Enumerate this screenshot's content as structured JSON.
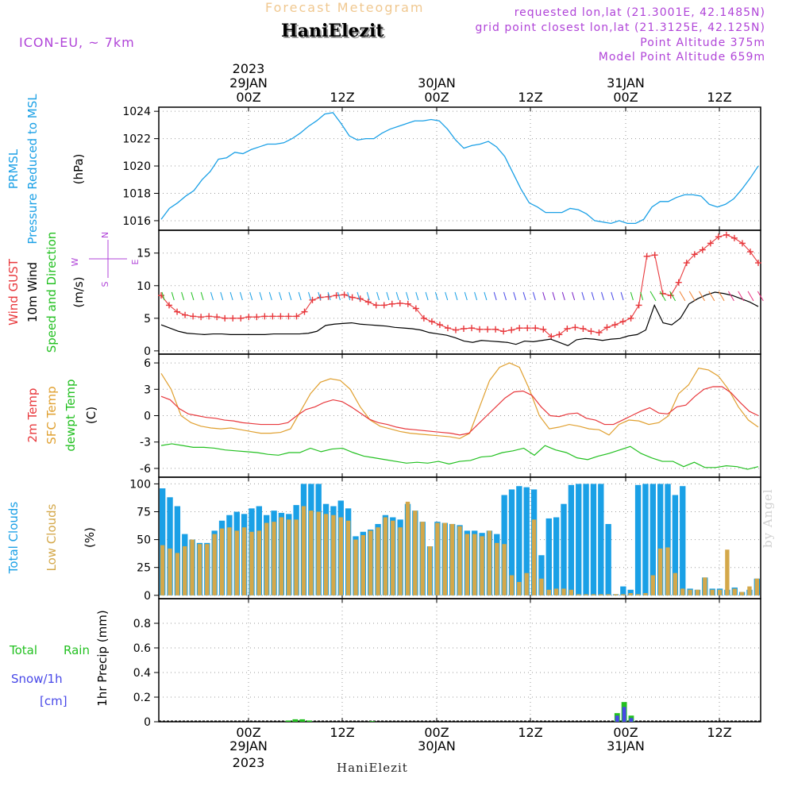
{
  "header": {
    "model": "ICON-EU, ~ 7km",
    "subtitle": "Forecast Meteogram",
    "location": "HaniElezit",
    "requested": "requested lon,lat (21.3001E, 42.1485N)",
    "gridpoint": "grid point closest lon,lat (21.3125E, 42.125N)",
    "point_alt": "Point Altitude 375m",
    "model_alt": "Model Point Altitude 659m"
  },
  "footer": {
    "name": "HaniElezit",
    "byline": "by Angel"
  },
  "time_axis": {
    "top_year": "2023",
    "ticks": [
      "00Z",
      "12Z",
      "00Z",
      "12Z",
      "00Z",
      "12Z"
    ],
    "dates": [
      "29JAN",
      "30JAN",
      "31JAN"
    ],
    "bottom_year": "2023"
  },
  "panel_labels": {
    "pressure": [
      "PRMSL",
      "Pressure Reduced to MSL",
      "(hPa)"
    ],
    "wind": [
      "Wind GUST",
      "10m Wind",
      "Speed and Direction",
      "(m/s)"
    ],
    "wind_compass": [
      "N",
      "S",
      "W",
      "E"
    ],
    "temp": [
      "2m Temp",
      "SFC Temp",
      "dewpt Temp",
      "(C)"
    ],
    "clouds": [
      "Total Clouds",
      "Low Clouds",
      "(%)"
    ],
    "precip": [
      "Total",
      "Rain",
      "Snow/1h",
      "[cm]",
      "1hr Precip (mm)"
    ]
  },
  "colors": {
    "pressure": "#1aa0e6",
    "gust": "#e8383c",
    "wind": "#000000",
    "temp2m": "#e8383c",
    "sfc": "#e0a030",
    "dewpt": "#22c020",
    "total_clouds": "#1aa0e6",
    "low_clouds": "#d4a84a",
    "rain": "#22c020",
    "snow": "#4848e8",
    "model": "#b044d8"
  },
  "chart_data": [
    {
      "type": "line",
      "title": "PRMSL",
      "ylabel": "(hPa)",
      "ylim": [
        1015.3,
        1024.3
      ],
      "yticks": [
        "1016",
        "1018",
        "1020",
        "1022",
        "1024"
      ],
      "yvals": [
        1016,
        1018,
        1020,
        1022,
        1024
      ],
      "series": [
        {
          "name": "PRMSL",
          "values": [
            1016.1,
            1016.9,
            1017.3,
            1017.8,
            1018.2,
            1019.0,
            1019.6,
            1020.5,
            1020.6,
            1021.0,
            1020.9,
            1021.2,
            1021.4,
            1021.6,
            1021.6,
            1021.7,
            1022.0,
            1022.4,
            1022.9,
            1023.3,
            1023.8,
            1023.9,
            1023.1,
            1022.2,
            1021.9,
            1022.0,
            1022.0,
            1022.4,
            1022.7,
            1022.9,
            1023.1,
            1023.3,
            1023.3,
            1023.4,
            1023.3,
            1022.7,
            1021.9,
            1021.3,
            1021.5,
            1021.6,
            1021.8,
            1021.4,
            1020.7,
            1019.5,
            1018.3,
            1017.3,
            1017.0,
            1016.6,
            1016.6,
            1016.6,
            1016.9,
            1016.8,
            1016.5,
            1016.0,
            1015.9,
            1015.8,
            1016.0,
            1015.8,
            1015.8,
            1016.1,
            1017.0,
            1017.4,
            1017.4,
            1017.7,
            1017.9,
            1017.9,
            1017.8,
            1017.2,
            1017.0,
            1017.2,
            1017.6,
            1018.3,
            1019.1,
            1020.0
          ]
        }
      ]
    },
    {
      "type": "line",
      "title": "Wind",
      "ylabel": "(m/s)",
      "ylim": [
        -0.5,
        18.5
      ],
      "yticks": [
        "0",
        "5",
        "10",
        "15"
      ],
      "yvals": [
        0,
        5,
        10,
        15
      ],
      "series": [
        {
          "name": "Wind GUST",
          "values": [
            8.5,
            7.0,
            6.0,
            5.5,
            5.3,
            5.2,
            5.3,
            5.2,
            5.0,
            5.0,
            5.0,
            5.2,
            5.2,
            5.3,
            5.3,
            5.3,
            5.3,
            5.3,
            6.0,
            7.8,
            8.2,
            8.3,
            8.5,
            8.6,
            8.2,
            8.0,
            7.5,
            7.0,
            7.0,
            7.2,
            7.3,
            7.2,
            6.5,
            5.0,
            4.5,
            4.0,
            3.5,
            3.2,
            3.4,
            3.5,
            3.3,
            3.3,
            3.3,
            3.0,
            3.2,
            3.5,
            3.5,
            3.5,
            3.3,
            2.2,
            2.5,
            3.4,
            3.6,
            3.4,
            3.0,
            2.8,
            3.6,
            4.0,
            4.5,
            5.0,
            7.0,
            14.5,
            14.7,
            8.8,
            8.5,
            10.5,
            13.5,
            14.8,
            15.5,
            16.5,
            17.5,
            17.8,
            17.3,
            16.5,
            15.2,
            13.5
          ]
        },
        {
          "name": "10m Wind",
          "values": [
            4.0,
            3.5,
            3.0,
            2.7,
            2.6,
            2.5,
            2.6,
            2.6,
            2.5,
            2.5,
            2.5,
            2.5,
            2.5,
            2.6,
            2.6,
            2.6,
            2.6,
            2.7,
            3.0,
            3.9,
            4.1,
            4.2,
            4.3,
            4.1,
            4.0,
            3.9,
            3.8,
            3.6,
            3.5,
            3.4,
            3.2,
            2.8,
            2.6,
            2.4,
            2.0,
            1.5,
            1.3,
            1.6,
            1.5,
            1.4,
            1.3,
            1.0,
            1.5,
            1.4,
            1.6,
            1.8,
            1.3,
            0.8,
            1.7,
            1.9,
            1.8,
            1.6,
            1.8,
            1.9,
            2.3,
            2.5,
            3.2,
            7.0,
            4.3,
            4.0,
            5.0,
            7.2,
            8.0,
            8.6,
            9.0,
            8.8,
            8.5,
            8.0,
            7.5,
            6.8
          ]
        }
      ]
    },
    {
      "type": "line",
      "title": "Temperature",
      "ylabel": "(C)",
      "ylim": [
        -7,
        7
      ],
      "yticks": [
        "-6",
        "-3",
        "0",
        "3",
        "6"
      ],
      "yvals": [
        -6,
        -3,
        0,
        3,
        6
      ],
      "series": [
        {
          "name": "2m Temp",
          "values": [
            2.2,
            1.8,
            0.8,
            0.2,
            0.0,
            -0.2,
            -0.3,
            -0.5,
            -0.6,
            -0.8,
            -0.9,
            -1.0,
            -1.0,
            -1.0,
            -0.8,
            0.0,
            0.7,
            1.0,
            1.5,
            1.8,
            1.6,
            1.0,
            0.3,
            -0.4,
            -0.8,
            -1.0,
            -1.3,
            -1.5,
            -1.6,
            -1.7,
            -1.8,
            -1.9,
            -2.0,
            -2.2,
            -2.0,
            -1.0,
            0.0,
            1.0,
            2.0,
            2.7,
            2.8,
            2.3,
            1.0,
            0.0,
            -0.1,
            0.2,
            0.3,
            -0.3,
            -0.5,
            -1.0,
            -1.0,
            -0.5,
            0.0,
            0.5,
            0.9,
            0.3,
            0.2,
            1.0,
            1.2,
            2.2,
            3.0,
            3.3,
            3.3,
            2.6,
            1.5,
            0.5,
            0.0
          ]
        },
        {
          "name": "SFC Temp",
          "values": [
            4.8,
            3.0,
            0.0,
            -0.8,
            -1.2,
            -1.4,
            -1.5,
            -1.4,
            -1.6,
            -1.8,
            -2.0,
            -2.0,
            -1.9,
            -1.5,
            0.5,
            2.5,
            3.8,
            4.2,
            4.0,
            3.0,
            1.0,
            -0.5,
            -1.2,
            -1.5,
            -1.8,
            -2.0,
            -2.1,
            -2.2,
            -2.3,
            -2.4,
            -2.6,
            -2.0,
            1.0,
            4.0,
            5.5,
            6.0,
            5.5,
            3.0,
            0.0,
            -1.5,
            -1.3,
            -1.0,
            -1.2,
            -1.5,
            -1.6,
            -2.2,
            -1.0,
            -0.5,
            -0.6,
            -1.0,
            -0.8,
            0.0,
            2.5,
            3.5,
            5.4,
            5.2,
            4.5,
            3.0,
            1.0,
            -0.5,
            -1.3
          ]
        },
        {
          "name": "dewpt Temp",
          "values": [
            -3.4,
            -3.2,
            -3.4,
            -3.6,
            -3.6,
            -3.7,
            -3.9,
            -4.0,
            -4.1,
            -4.2,
            -4.4,
            -4.5,
            -4.2,
            -4.2,
            -3.7,
            -4.1,
            -3.8,
            -3.7,
            -4.2,
            -4.6,
            -4.8,
            -5.0,
            -5.2,
            -5.4,
            -5.3,
            -5.4,
            -5.2,
            -5.5,
            -5.2,
            -5.1,
            -4.7,
            -4.6,
            -4.2,
            -4.0,
            -3.7,
            -4.5,
            -3.4,
            -3.9,
            -4.2,
            -4.8,
            -5.0,
            -4.6,
            -4.3,
            -3.9,
            -3.5,
            -4.3,
            -4.8,
            -5.2,
            -5.2,
            -5.8,
            -5.3,
            -5.9,
            -5.9,
            -5.7,
            -5.8,
            -6.1,
            -5.8
          ]
        }
      ]
    },
    {
      "type": "bar",
      "title": "Clouds",
      "ylabel": "(%)",
      "ylim": [
        -3,
        106
      ],
      "yticks": [
        "0",
        "25",
        "50",
        "75",
        "100"
      ],
      "yvals": [
        0,
        25,
        50,
        75,
        100
      ],
      "series": [
        {
          "name": "Total Clouds",
          "values": [
            96,
            88,
            80,
            55,
            50,
            47,
            47,
            58,
            67,
            72,
            75,
            73,
            78,
            80,
            72,
            76,
            74,
            73,
            81,
            100,
            100,
            100,
            82,
            80,
            85,
            78,
            53,
            57,
            59,
            64,
            72,
            70,
            68,
            82,
            76,
            66,
            44,
            66,
            65,
            64,
            63,
            58,
            58,
            56,
            58,
            55,
            90,
            95,
            98,
            97,
            95,
            36,
            69,
            70,
            82,
            99,
            100,
            100,
            100,
            100,
            64,
            1,
            8,
            5,
            99,
            100,
            100,
            100,
            100,
            90,
            98,
            6,
            5,
            16,
            6,
            6,
            5,
            7,
            3,
            5,
            15
          ]
        },
        {
          "name": "Low Clouds",
          "values": [
            45,
            42,
            38,
            44,
            50,
            46,
            46,
            55,
            60,
            61,
            58,
            61,
            57,
            58,
            65,
            66,
            70,
            68,
            68,
            80,
            76,
            75,
            73,
            72,
            70,
            67,
            50,
            54,
            58,
            61,
            70,
            67,
            61,
            84,
            76,
            66,
            44,
            65,
            65,
            64,
            62,
            55,
            55,
            53,
            58,
            47,
            46,
            18,
            12,
            20,
            68,
            15,
            5,
            6,
            6,
            5,
            1,
            1,
            1,
            1,
            1,
            1,
            1,
            2,
            1,
            2,
            18,
            42,
            43,
            20,
            6,
            5,
            5,
            16,
            5,
            5,
            41,
            6,
            3,
            8,
            15
          ]
        }
      ]
    },
    {
      "type": "bar",
      "title": "Precipitation",
      "ylabel": "1hr Precip (mm)",
      "ylim": [
        0,
        1.0
      ],
      "yticks": [
        "0",
        "0.2",
        "0.4",
        "0.6",
        "0.8"
      ],
      "yvals": [
        0,
        0.2,
        0.4,
        0.6,
        0.8
      ],
      "series": [
        {
          "name": "Total Rain",
          "values": [
            0,
            0,
            0,
            0,
            0,
            0,
            0,
            0,
            0,
            0,
            0,
            0,
            0,
            0,
            0,
            0,
            0,
            0,
            0.01,
            0.02,
            0.02,
            0.01,
            0,
            0,
            0,
            0,
            0,
            0,
            0,
            0,
            0.005,
            0,
            0,
            0,
            0,
            0,
            0,
            0,
            0,
            0,
            0,
            0,
            0,
            0,
            0,
            0,
            0,
            0,
            0,
            0,
            0,
            0,
            0,
            0,
            0,
            0,
            0,
            0,
            0,
            0,
            0,
            0,
            0,
            0,
            0,
            0.07,
            0.16,
            0.05,
            0,
            0,
            0,
            0,
            0,
            0,
            0,
            0,
            0,
            0,
            0,
            0,
            0,
            0,
            0,
            0,
            0,
            0
          ]
        },
        {
          "name": "Snow/1h",
          "values": [
            0,
            0,
            0,
            0,
            0,
            0,
            0,
            0,
            0,
            0,
            0,
            0,
            0,
            0,
            0,
            0,
            0,
            0,
            0,
            0,
            0,
            0,
            0,
            0,
            0,
            0,
            0,
            0,
            0,
            0,
            0,
            0,
            0,
            0,
            0,
            0,
            0,
            0,
            0,
            0,
            0,
            0,
            0,
            0,
            0,
            0,
            0,
            0,
            0,
            0,
            0,
            0,
            0,
            0,
            0,
            0,
            0,
            0,
            0,
            0,
            0,
            0,
            0,
            0,
            0,
            0.05,
            0.12,
            0.03,
            0,
            0,
            0,
            0,
            0,
            0,
            0,
            0,
            0,
            0,
            0,
            0,
            0,
            0,
            0,
            0,
            0,
            0
          ]
        }
      ]
    }
  ]
}
